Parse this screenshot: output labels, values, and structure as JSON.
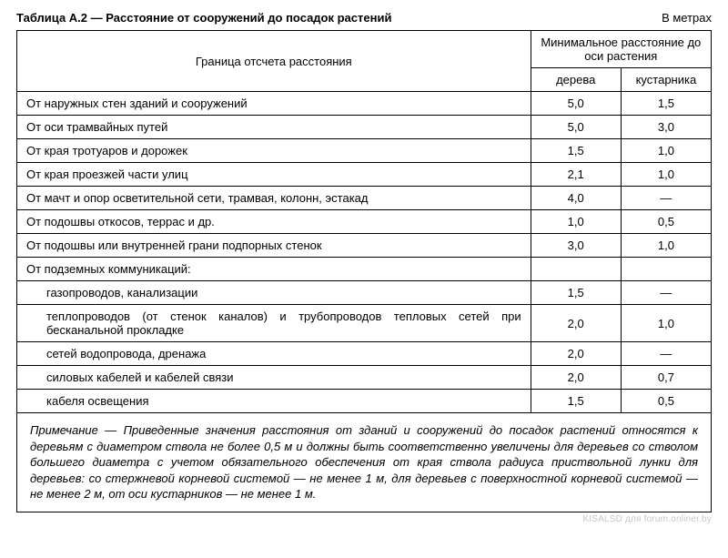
{
  "title": "Таблица А.2 — Расстояние от сооружений до посадок растений",
  "units": "В метрах",
  "header": {
    "left": "Граница отсчета расстояния",
    "group": "Минимальное расстояние до оси растения",
    "col_tree": "дерева",
    "col_shrub": "кустарника"
  },
  "rows": [
    {
      "label": "От наружных стен зданий и сооружений",
      "tree": "5,0",
      "shrub": "1,5"
    },
    {
      "label": "От оси трамвайных путей",
      "tree": "5,0",
      "shrub": "3,0"
    },
    {
      "label": "От края тротуаров и дорожек",
      "tree": "1,5",
      "shrub": "1,0"
    },
    {
      "label": "От края проезжей части улиц",
      "tree": "2,1",
      "shrub": "1,0"
    },
    {
      "label": "От мачт и опор осветительной сети, трамвая, колонн, эстакад",
      "tree": "4,0",
      "shrub": "—"
    },
    {
      "label": "От подошвы откосов, террас и др.",
      "tree": "1,0",
      "shrub": "0,5"
    },
    {
      "label": "От подошвы или внутренней грани подпорных стенок",
      "tree": "3,0",
      "shrub": "1,0"
    }
  ],
  "group": {
    "label": "От подземных коммуникаций:",
    "items": [
      {
        "label": "газопроводов, канализации",
        "tree": "1,5",
        "shrub": "—"
      },
      {
        "label": "теплопроводов (от стенок каналов) и трубопроводов тепловых сетей при бесканальной прокладке",
        "tree": "2,0",
        "shrub": "1,0",
        "wrap": true
      },
      {
        "label": "сетей водопровода, дренажа",
        "tree": "2,0",
        "shrub": "—"
      },
      {
        "label": "силовых кабелей и кабелей связи",
        "tree": "2,0",
        "shrub": "0,7"
      },
      {
        "label": "кабеля освещения",
        "tree": "1,5",
        "shrub": "0,5"
      }
    ]
  },
  "note": {
    "lead": "Примечание",
    "text": " — Приведенные значения расстояния от зданий и сооружений до посадок растений относятся к деревьям с диаметром ствола не более 0,5 м и должны быть соответственно увеличены для деревьев со стволом большего диаметра с учетом обязательного обеспечения от края ствола радиуса приствольной лунки для деревьев: со стержневой корневой системой — не менее 1 м, для деревьев с поверхностной корневой системой — не менее 2 м, от оси кустарников — не менее 1 м."
  },
  "watermark": "KISALSD для forum.onliner.by",
  "colors": {
    "border": "#000000",
    "bg": "#ffffff",
    "watermark": "#c8c8c8"
  },
  "fonts": {
    "base_size_pt": 10,
    "title_weight": "bold"
  }
}
